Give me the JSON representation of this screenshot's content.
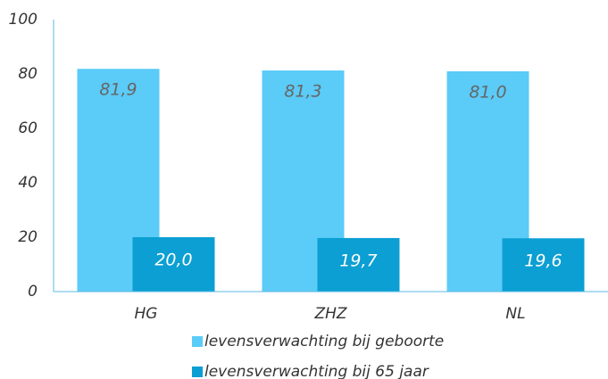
{
  "chart_data": {
    "type": "bar",
    "categories": [
      "HG",
      "ZHZ",
      "NL"
    ],
    "series": [
      {
        "name": "levensverwachting bij geboorte",
        "color": "#5bcbf7",
        "values": [
          81.9,
          81.3,
          81.0
        ],
        "value_labels": [
          "81,9",
          "81,3",
          "81,0"
        ]
      },
      {
        "name": "levensverwachting bij 65 jaar",
        "color": "#0b9fd3",
        "values": [
          20.0,
          19.7,
          19.6
        ],
        "value_labels": [
          "20,0",
          "19,7",
          "19,6"
        ]
      }
    ],
    "ylim": [
      0,
      100
    ],
    "yticks": [
      0,
      20,
      40,
      60,
      80,
      100
    ],
    "grid": false
  }
}
